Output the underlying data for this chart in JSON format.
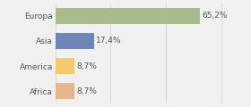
{
  "categories": [
    "Europa",
    "Asia",
    "America",
    "Africa"
  ],
  "values": [
    65.2,
    17.4,
    8.7,
    8.7
  ],
  "labels": [
    "65,2%",
    "17,4%",
    "8,7%",
    "8,7%"
  ],
  "colors": [
    "#a8bb8a",
    "#6e85b7",
    "#f5c96a",
    "#e8b48a"
  ],
  "xlim": [
    0,
    85
  ],
  "bar_height": 0.65,
  "background_color": "#f0f0f0",
  "label_fontsize": 6.5,
  "tick_fontsize": 6.5,
  "grid_color": "#d0d0d0",
  "text_color": "#555555"
}
